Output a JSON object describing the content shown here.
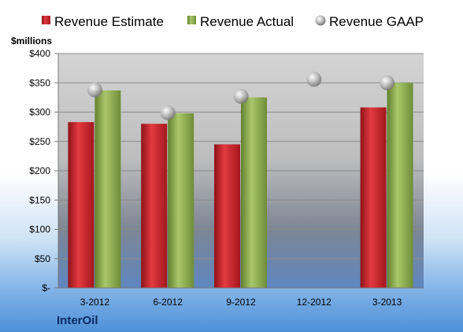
{
  "chart_data": {
    "type": "bar",
    "unit_label": "$millions",
    "company": "InterOil",
    "categories": [
      "3-2012",
      "6-2012",
      "9-2012",
      "12-2012",
      "3-2013"
    ],
    "series": [
      {
        "name": "Revenue Estimate",
        "type": "bar",
        "color": "#c8252c",
        "values": [
          283,
          280,
          245,
          null,
          308
        ]
      },
      {
        "name": "Revenue Actual",
        "type": "bar",
        "color": "#8fae4f",
        "values": [
          337,
          298,
          325,
          null,
          350
        ]
      },
      {
        "name": "Revenue GAAP",
        "type": "scatter",
        "color": "#b0b0b0",
        "values": [
          338,
          299,
          327,
          356,
          350
        ]
      }
    ],
    "ylim": [
      0,
      400
    ],
    "yticks": [
      0,
      50,
      100,
      150,
      200,
      250,
      300,
      350,
      400
    ],
    "ytick_labels": [
      "$-",
      "$50",
      "$100",
      "$150",
      "$200",
      "$250",
      "$300",
      "$350",
      "$400"
    ],
    "grid": true,
    "legend_position": "top"
  }
}
